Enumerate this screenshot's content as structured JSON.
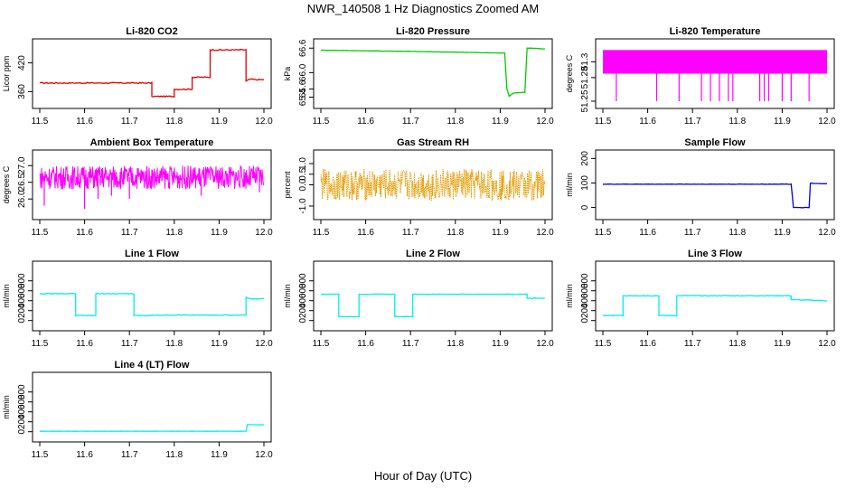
{
  "title": "NWR_140508  1 Hz Diagnostics Zoomed AM",
  "xlabel": "Hour of Day (UTC)",
  "chart_data": [
    {
      "type": "line",
      "title": "Li-820 CO2",
      "ylabel": "Licor ppm",
      "color": "#dd0000",
      "style": "line",
      "xlim": [
        11.5,
        12.0
      ],
      "ylim": [
        340,
        455
      ],
      "xticks": [
        "11.5",
        "11.6",
        "11.7",
        "11.8",
        "11.9",
        "12.0"
      ],
      "yticks": [
        "360",
        "420"
      ],
      "noise": 1.2,
      "series": [
        {
          "x": [
            11.5,
            11.75,
            11.75,
            11.8,
            11.8,
            11.84,
            11.84,
            11.88,
            11.88,
            11.96,
            11.96,
            11.97,
            11.98,
            12.0
          ],
          "y": [
            378,
            378,
            350,
            350,
            365,
            365,
            390,
            390,
            447,
            447,
            382,
            386,
            385,
            385
          ]
        }
      ]
    },
    {
      "type": "line",
      "title": "Li-820 Pressure",
      "ylabel": "kPa",
      "color": "#00cc00",
      "style": "line",
      "xlim": [
        11.5,
        12.0
      ],
      "ylim": [
        65.3,
        66.65
      ],
      "xticks": [
        "11.5",
        "11.6",
        "11.7",
        "11.8",
        "11.9",
        "12.0"
      ],
      "yticks": [
        "65.4",
        "65.6",
        "66.0",
        "66.6"
      ],
      "noise": 0.004,
      "series": [
        {
          "x": [
            11.5,
            11.7,
            11.91,
            11.915,
            11.92,
            11.93,
            11.955,
            11.96,
            11.97,
            12.0
          ],
          "y": [
            66.55,
            66.52,
            66.48,
            65.6,
            65.42,
            65.5,
            65.52,
            66.6,
            66.6,
            66.58
          ]
        }
      ]
    },
    {
      "type": "line",
      "title": "Li-820 Temperature",
      "ylabel": "degrees C",
      "color": "#ff00ff",
      "style": "dense-band",
      "xlim": [
        11.5,
        12.0
      ],
      "ylim": [
        51.25,
        51.32
      ],
      "xticks": [
        "11.5",
        "11.6",
        "11.7",
        "11.8",
        "11.9",
        "12.0"
      ],
      "yticks": [
        "51.25",
        "51.28",
        "51.3"
      ],
      "band": [
        51.285,
        51.315
      ],
      "spikes_to": 51.25,
      "spike_x": [
        11.53,
        11.62,
        11.67,
        11.72,
        11.74,
        11.76,
        11.78,
        11.79,
        11.85,
        11.86,
        11.87,
        11.9,
        11.92,
        11.96
      ]
    },
    {
      "type": "line",
      "title": "Ambient Box Temperature",
      "ylabel": "degrees C",
      "color": "#ff00ff",
      "style": "noise",
      "xlim": [
        11.5,
        12.0
      ],
      "ylim": [
        25.6,
        27.25
      ],
      "xticks": [
        "11.5",
        "11.6",
        "11.7",
        "11.8",
        "11.9",
        "12.0"
      ],
      "yticks": [
        "26.0",
        "26.5",
        "27.0"
      ],
      "center": 26.65,
      "amplitude": 0.35,
      "spike_x": [
        11.51,
        11.6,
        11.63,
        11.66,
        11.7,
        11.86,
        11.99
      ],
      "spike_y": [
        25.8,
        25.7,
        26.0,
        26.1,
        26.0,
        26.1,
        26.2
      ]
    },
    {
      "type": "scatter",
      "title": "Gas Stream RH",
      "ylabel": "percent",
      "color": "#e69b00",
      "style": "noise",
      "xlim": [
        11.5,
        12.0
      ],
      "ylim": [
        -1.3,
        1.3
      ],
      "xticks": [
        "11.5",
        "11.6",
        "11.7",
        "11.8",
        "11.9",
        "12.0"
      ],
      "yticks": [
        "-1.0",
        "0.0",
        "0.5",
        "1.0"
      ],
      "center": 0.0,
      "amplitude": 0.75,
      "spike_x": [],
      "spike_y": []
    },
    {
      "type": "line",
      "title": "Sample Flow",
      "ylabel": "ml/min",
      "color": "#0000dd",
      "style": "line",
      "xlim": [
        11.5,
        12.0
      ],
      "ylim": [
        -20,
        205
      ],
      "xticks": [
        "11.5",
        "11.6",
        "11.7",
        "11.8",
        "11.9",
        "12.0"
      ],
      "yticks": [
        "0",
        "100",
        "200"
      ],
      "noise": 0.8,
      "series": [
        {
          "x": [
            11.5,
            11.92,
            11.925,
            11.96,
            11.963,
            11.97,
            12.0
          ],
          "y": [
            95,
            95,
            0,
            0,
            100,
            98,
            97
          ]
        }
      ]
    },
    {
      "type": "line",
      "title": "Line 1 Flow",
      "ylabel": "ml/min",
      "color": "#00eeee",
      "style": "line",
      "xlim": [
        11.5,
        12.0
      ],
      "ylim": [
        -60,
        1050
      ],
      "xticks": [
        "11.5",
        "11.6",
        "11.7",
        "11.8",
        "11.9",
        "12.0"
      ],
      "yticks": [
        "0",
        "200",
        "400",
        "600",
        "800"
      ],
      "noise": 8,
      "series": [
        {
          "x": [
            11.5,
            11.58,
            11.58,
            11.625,
            11.625,
            11.71,
            11.71,
            11.75,
            11.75,
            11.96,
            11.96,
            11.97,
            12.0
          ],
          "y": [
            540,
            540,
            100,
            100,
            540,
            540,
            100,
            100,
            110,
            110,
            470,
            440,
            440
          ]
        }
      ]
    },
    {
      "type": "line",
      "title": "Line 2 Flow",
      "ylabel": "ml/min",
      "color": "#00eeee",
      "style": "line",
      "xlim": [
        11.5,
        12.0
      ],
      "ylim": [
        -60,
        1050
      ],
      "xticks": [
        "11.5",
        "11.6",
        "11.7",
        "11.8",
        "11.9",
        "12.0"
      ],
      "yticks": [
        "0",
        "200",
        "400",
        "600",
        "800"
      ],
      "noise": 6,
      "series": [
        {
          "x": [
            11.5,
            11.54,
            11.54,
            11.585,
            11.585,
            11.665,
            11.665,
            11.705,
            11.705,
            11.96,
            11.96,
            12.0
          ],
          "y": [
            530,
            530,
            80,
            80,
            530,
            530,
            80,
            80,
            530,
            530,
            450,
            450
          ]
        }
      ]
    },
    {
      "type": "line",
      "title": "Line 3 Flow",
      "ylabel": "ml/min",
      "color": "#00eeee",
      "style": "line",
      "xlim": [
        11.5,
        12.0
      ],
      "ylim": [
        -60,
        1050
      ],
      "xticks": [
        "11.5",
        "11.6",
        "11.7",
        "11.8",
        "11.9",
        "12.0"
      ],
      "yticks": [
        "0",
        "200",
        "400",
        "600",
        "800"
      ],
      "noise": 8,
      "series": [
        {
          "x": [
            11.5,
            11.545,
            11.545,
            11.625,
            11.625,
            11.665,
            11.665,
            11.92,
            11.92,
            12.0
          ],
          "y": [
            100,
            100,
            500,
            500,
            100,
            100,
            500,
            500,
            420,
            400
          ]
        }
      ]
    },
    {
      "type": "line",
      "title": "Line 4 (LT) Flow",
      "ylabel": "ml/min",
      "color": "#00eeee",
      "style": "line",
      "xlim": [
        11.5,
        12.0
      ],
      "ylim": [
        -60,
        1050
      ],
      "xticks": [
        "11.5",
        "11.6",
        "11.7",
        "11.8",
        "11.9",
        "12.0"
      ],
      "yticks": [
        "0",
        "200",
        "400",
        "600",
        "800"
      ],
      "noise": 1.5,
      "series": [
        {
          "x": [
            11.5,
            11.96,
            11.963,
            12.0
          ],
          "y": [
            10,
            10,
            140,
            140
          ]
        }
      ]
    }
  ]
}
